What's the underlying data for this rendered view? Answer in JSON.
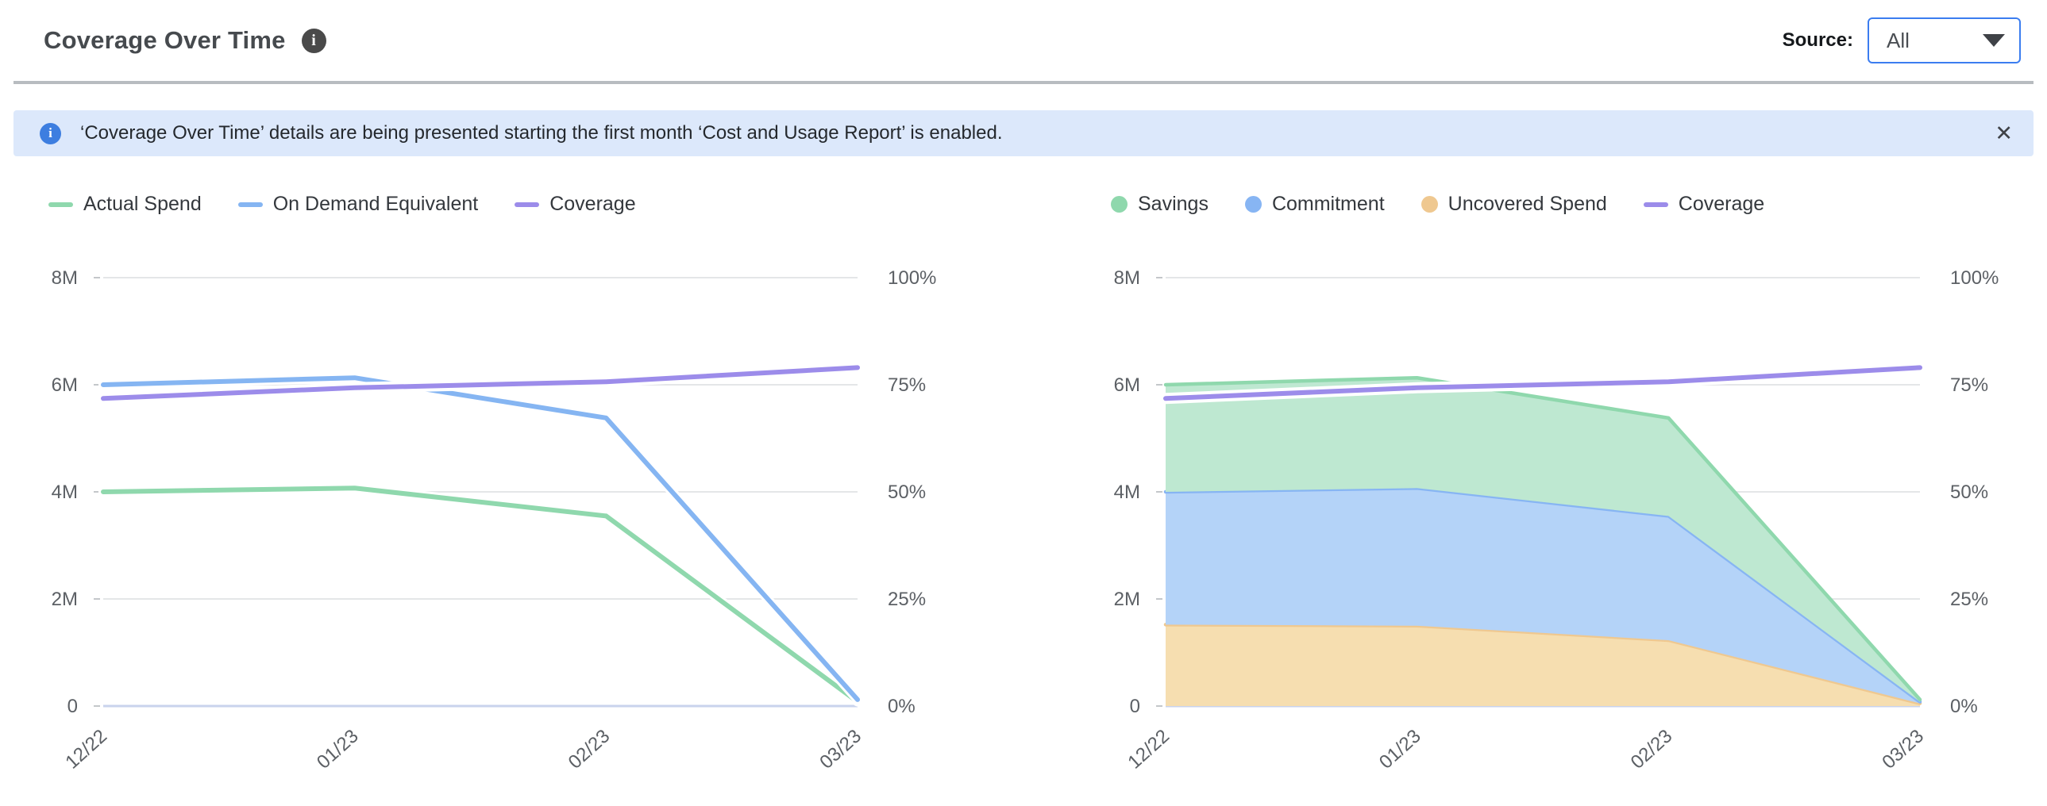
{
  "header": {
    "title": "Coverage Over Time",
    "source_label": "Source:",
    "source_value": "All"
  },
  "icons": {
    "info": "i",
    "close": "✕",
    "caret": "chevron-down"
  },
  "banner": {
    "text": "‘Coverage Over Time’ details are being presented starting the first month ‘Cost and Usage Report’ is enabled."
  },
  "colors": {
    "accent_blue": "#3B7DF0",
    "banner_bg": "#DCE8FB",
    "banner_icon": "#3D7EE0",
    "grid": "#E4E6E8",
    "axis_zero_line": "#C9D3EC",
    "tick": "#C4C7CA",
    "green": "#8FD8AD",
    "blue": "#85B5F2",
    "purple": "#9C8CEA",
    "orange": "#EFC890",
    "green_fill": "#BEE8D1",
    "blue_fill": "#B4D3F8",
    "orange_fill": "#F6DEB0"
  },
  "chart_data": [
    {
      "type": "line",
      "name": "coverage-over-time-lines",
      "x": [
        "12/22",
        "01/23",
        "02/23",
        "03/23"
      ],
      "left_axis": {
        "unit": "M",
        "max": 8,
        "ticks": [
          "8M",
          "6M",
          "4M",
          "2M",
          "0"
        ]
      },
      "right_axis": {
        "unit": "%",
        "max": 100,
        "ticks": [
          "100%",
          "75%",
          "50%",
          "25%",
          "0%"
        ]
      },
      "grid": true,
      "legend_position": "top-left",
      "series": [
        {
          "name": "Actual Spend",
          "swatch": "line",
          "axis": "left",
          "color": "#8FD8AD",
          "values_millions": [
            4.0,
            4.07,
            3.55,
            0.08
          ]
        },
        {
          "name": "On Demand Equivalent",
          "swatch": "line",
          "axis": "left",
          "color": "#85B5F2",
          "values_millions": [
            6.0,
            6.13,
            5.38,
            0.12
          ]
        },
        {
          "name": "Coverage",
          "swatch": "line",
          "axis": "right",
          "color": "#9C8CEA",
          "values_percent": [
            71.8,
            74.3,
            75.7,
            79.0
          ]
        }
      ]
    },
    {
      "type": "area",
      "name": "coverage-over-time-stacked",
      "stacked": true,
      "x": [
        "12/22",
        "01/23",
        "02/23",
        "03/23"
      ],
      "left_axis": {
        "unit": "M",
        "max": 8,
        "ticks": [
          "8M",
          "6M",
          "4M",
          "2M",
          "0"
        ]
      },
      "right_axis": {
        "unit": "%",
        "max": 100,
        "ticks": [
          "100%",
          "75%",
          "50%",
          "25%",
          "0%"
        ]
      },
      "grid": true,
      "legend_position": "top-left",
      "series": [
        {
          "name": "Savings",
          "swatch": "dot",
          "axis": "left",
          "color": "#8FD8AD",
          "fill": "#BEE8D1",
          "stack_order": 3,
          "values_millions": [
            2.0,
            2.06,
            1.83,
            0.04
          ]
        },
        {
          "name": "Commitment",
          "swatch": "dot",
          "axis": "left",
          "color": "#87B5F3",
          "fill": "#B4D3F8",
          "stack_order": 2,
          "values_millions": [
            2.48,
            2.57,
            2.32,
            0.03
          ]
        },
        {
          "name": "Uncovered Spend",
          "swatch": "dot",
          "axis": "left",
          "color": "#EFC890",
          "fill": "#F6DEB0",
          "stack_order": 1,
          "values_millions": [
            1.52,
            1.5,
            1.23,
            0.05
          ]
        },
        {
          "name": "Coverage",
          "swatch": "line",
          "axis": "right",
          "color": "#9C8CEA",
          "values_percent": [
            71.8,
            74.3,
            75.7,
            79.0
          ]
        }
      ]
    }
  ]
}
